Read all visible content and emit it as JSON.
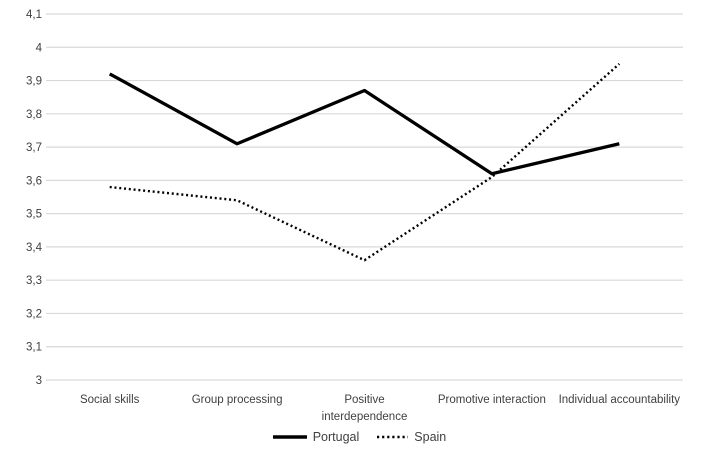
{
  "chart_data": {
    "type": "line",
    "title": "",
    "xlabel": "",
    "ylabel": "",
    "categories": [
      "Social skills",
      "Group processing",
      "Positive interdependence",
      "Promotive interaction",
      "Individual accountability"
    ],
    "wrapped_categories": [
      [
        "Social skills"
      ],
      [
        "Group processing"
      ],
      [
        "Positive",
        "interdependence"
      ],
      [
        "Promotive interaction"
      ],
      [
        "Individual accountability"
      ]
    ],
    "series": [
      {
        "name": "Portugal",
        "style": "solid",
        "color": "#000000",
        "values": [
          3.92,
          3.71,
          3.87,
          3.62,
          3.71
        ]
      },
      {
        "name": "Spain",
        "style": "dotted",
        "color": "#000000",
        "values": [
          3.58,
          3.54,
          3.36,
          3.61,
          3.95
        ]
      }
    ],
    "ylim": [
      3,
      4.1
    ],
    "y_tick_step": 0.1,
    "y_tick_labels": [
      "3",
      "3,1",
      "3,2",
      "3,3",
      "3,4",
      "3,5",
      "3,6",
      "3,7",
      "3,8",
      "3,9",
      "4",
      "4,1"
    ],
    "decimal_separator": ",",
    "grid": true,
    "legend_position": "bottom",
    "colors": {
      "background": "#ffffff",
      "gridline": "#d9d9d9",
      "axis_text": "#404040",
      "line": "#000000"
    }
  }
}
